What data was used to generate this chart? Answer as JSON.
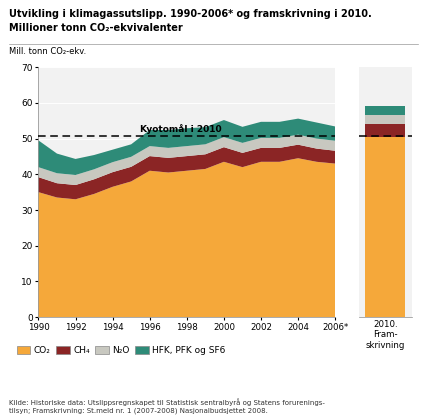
{
  "title_line1": "Utvikling i klimagassutslipp. 1990-2006* og framskrivning i 2010.",
  "title_line2": "Millioner tonn CO₂-ekvivalenter",
  "ylabel": "Mill. tonn CO₂-ekv.",
  "years": [
    1990,
    1991,
    1992,
    1993,
    1994,
    1995,
    1996,
    1997,
    1998,
    1999,
    2000,
    2001,
    2002,
    2003,
    2004,
    2005,
    2006
  ],
  "co2": [
    35.0,
    33.5,
    33.0,
    34.5,
    36.5,
    38.0,
    41.0,
    40.5,
    41.0,
    41.5,
    43.5,
    42.0,
    43.5,
    43.5,
    44.5,
    43.5,
    43.0
  ],
  "ch4": [
    4.2,
    4.0,
    4.0,
    4.1,
    4.1,
    4.1,
    4.1,
    4.1,
    4.1,
    4.1,
    4.1,
    4.0,
    3.9,
    3.9,
    3.8,
    3.7,
    3.6
  ],
  "n2o": [
    2.8,
    2.8,
    2.8,
    2.8,
    2.8,
    2.8,
    2.8,
    2.8,
    2.8,
    2.8,
    2.8,
    2.8,
    2.8,
    2.8,
    2.8,
    2.8,
    2.8
  ],
  "hfk": [
    7.5,
    5.5,
    4.5,
    4.0,
    3.5,
    3.5,
    4.5,
    5.0,
    5.0,
    4.8,
    4.8,
    4.5,
    4.5,
    4.5,
    4.5,
    4.5,
    4.0
  ],
  "bar_2010_co2": 50.5,
  "bar_2010_ch4": 3.5,
  "bar_2010_n2o": 2.5,
  "bar_2010_hfk": 2.5,
  "kyoto_line": 50.8,
  "kyoto_label": "Kyotomål i 2010",
  "color_co2": "#F5A83A",
  "color_ch4": "#8B2525",
  "color_n2o": "#C8C8C0",
  "color_hfk": "#2E8B78",
  "ylim_max": 70,
  "yticks": [
    0,
    10,
    20,
    30,
    40,
    50,
    60,
    70
  ],
  "legend_labels": [
    "CO₂",
    "CH₄",
    "N₂O",
    "HFK, PFK og SF6"
  ],
  "source_text": "Kilde: Historiske data: Utslippsregnskapet til Statistisk sentralbyrå og Statens forurenings-\ntilsyn; Framskrivning: St.meld nr. 1 (2007-2008) Nasjonalbudsjettet 2008.",
  "xlabel_bar": "2010.\nFram-\nskrivning",
  "xtick_positions": [
    1990,
    1992,
    1994,
    1996,
    1998,
    2000,
    2002,
    2004,
    2006
  ],
  "xtick_labels": [
    "1990",
    "1992",
    "1994",
    "1996",
    "1998",
    "2000",
    "2002",
    "2004",
    "2006*"
  ],
  "bg_color": "#F2F2F2"
}
